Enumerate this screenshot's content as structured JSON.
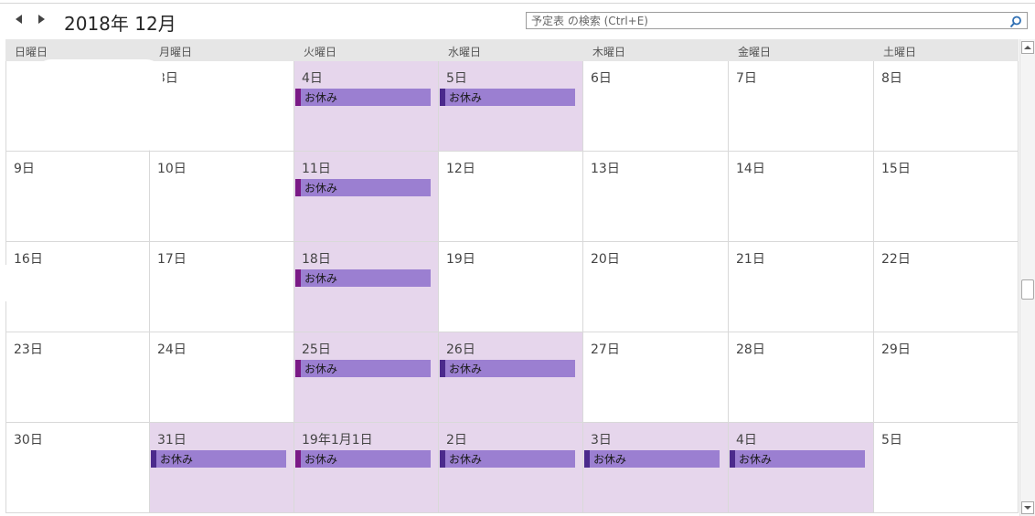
{
  "header": {
    "month_title": "2018年 12月",
    "search_placeholder": "予定表 の検索 (Ctrl+E)"
  },
  "weekdays": [
    "日曜日",
    "月曜日",
    "火曜日",
    "水曜日",
    "木曜日",
    "金曜日",
    "土曜日"
  ],
  "weeks": [
    [
      {
        "label": "",
        "busy": false,
        "event": null
      },
      {
        "label": "3日",
        "busy": false,
        "event": null
      },
      {
        "label": "4日",
        "busy": true,
        "event": {
          "title": "お休み",
          "bar": "#7a1a86"
        }
      },
      {
        "label": "5日",
        "busy": true,
        "event": {
          "title": "お休み",
          "bar": "#4b2a8c"
        }
      },
      {
        "label": "6日",
        "busy": false,
        "event": null
      },
      {
        "label": "7日",
        "busy": false,
        "event": null
      },
      {
        "label": "8日",
        "busy": false,
        "event": null
      }
    ],
    [
      {
        "label": "9日",
        "busy": false,
        "event": null
      },
      {
        "label": "10日",
        "busy": false,
        "event": null
      },
      {
        "label": "11日",
        "busy": true,
        "event": {
          "title": "お休み",
          "bar": "#7a1a86"
        }
      },
      {
        "label": "12日",
        "busy": false,
        "event": null
      },
      {
        "label": "13日",
        "busy": false,
        "event": null
      },
      {
        "label": "14日",
        "busy": false,
        "event": null
      },
      {
        "label": "15日",
        "busy": false,
        "event": null
      }
    ],
    [
      {
        "label": "16日",
        "busy": false,
        "event": null
      },
      {
        "label": "17日",
        "busy": false,
        "event": null
      },
      {
        "label": "18日",
        "busy": true,
        "event": {
          "title": "お休み",
          "bar": "#7a1a86"
        }
      },
      {
        "label": "19日",
        "busy": false,
        "event": null
      },
      {
        "label": "20日",
        "busy": false,
        "event": null
      },
      {
        "label": "21日",
        "busy": false,
        "event": null
      },
      {
        "label": "22日",
        "busy": false,
        "event": null
      }
    ],
    [
      {
        "label": "23日",
        "busy": false,
        "event": null
      },
      {
        "label": "24日",
        "busy": false,
        "event": null
      },
      {
        "label": "25日",
        "busy": true,
        "event": {
          "title": "お休み",
          "bar": "#7a1a86"
        }
      },
      {
        "label": "26日",
        "busy": true,
        "event": {
          "title": "お休み",
          "bar": "#4b2a8c"
        }
      },
      {
        "label": "27日",
        "busy": false,
        "event": null
      },
      {
        "label": "28日",
        "busy": false,
        "event": null
      },
      {
        "label": "29日",
        "busy": false,
        "event": null
      }
    ],
    [
      {
        "label": "30日",
        "busy": false,
        "event": null
      },
      {
        "label": "31日",
        "busy": true,
        "event": {
          "title": "お休み",
          "bar": "#4b2a8c"
        }
      },
      {
        "label": "19年1月1日",
        "busy": true,
        "event": {
          "title": "お休み",
          "bar": "#7a1a86"
        }
      },
      {
        "label": "2日",
        "busy": true,
        "event": {
          "title": "お休み",
          "bar": "#4b2a8c"
        }
      },
      {
        "label": "3日",
        "busy": true,
        "event": {
          "title": "お休み",
          "bar": "#4b2a8c"
        }
      },
      {
        "label": "4日",
        "busy": true,
        "event": {
          "title": "お休み",
          "bar": "#4b2a8c"
        }
      },
      {
        "label": "5日",
        "busy": false,
        "event": null
      }
    ]
  ]
}
